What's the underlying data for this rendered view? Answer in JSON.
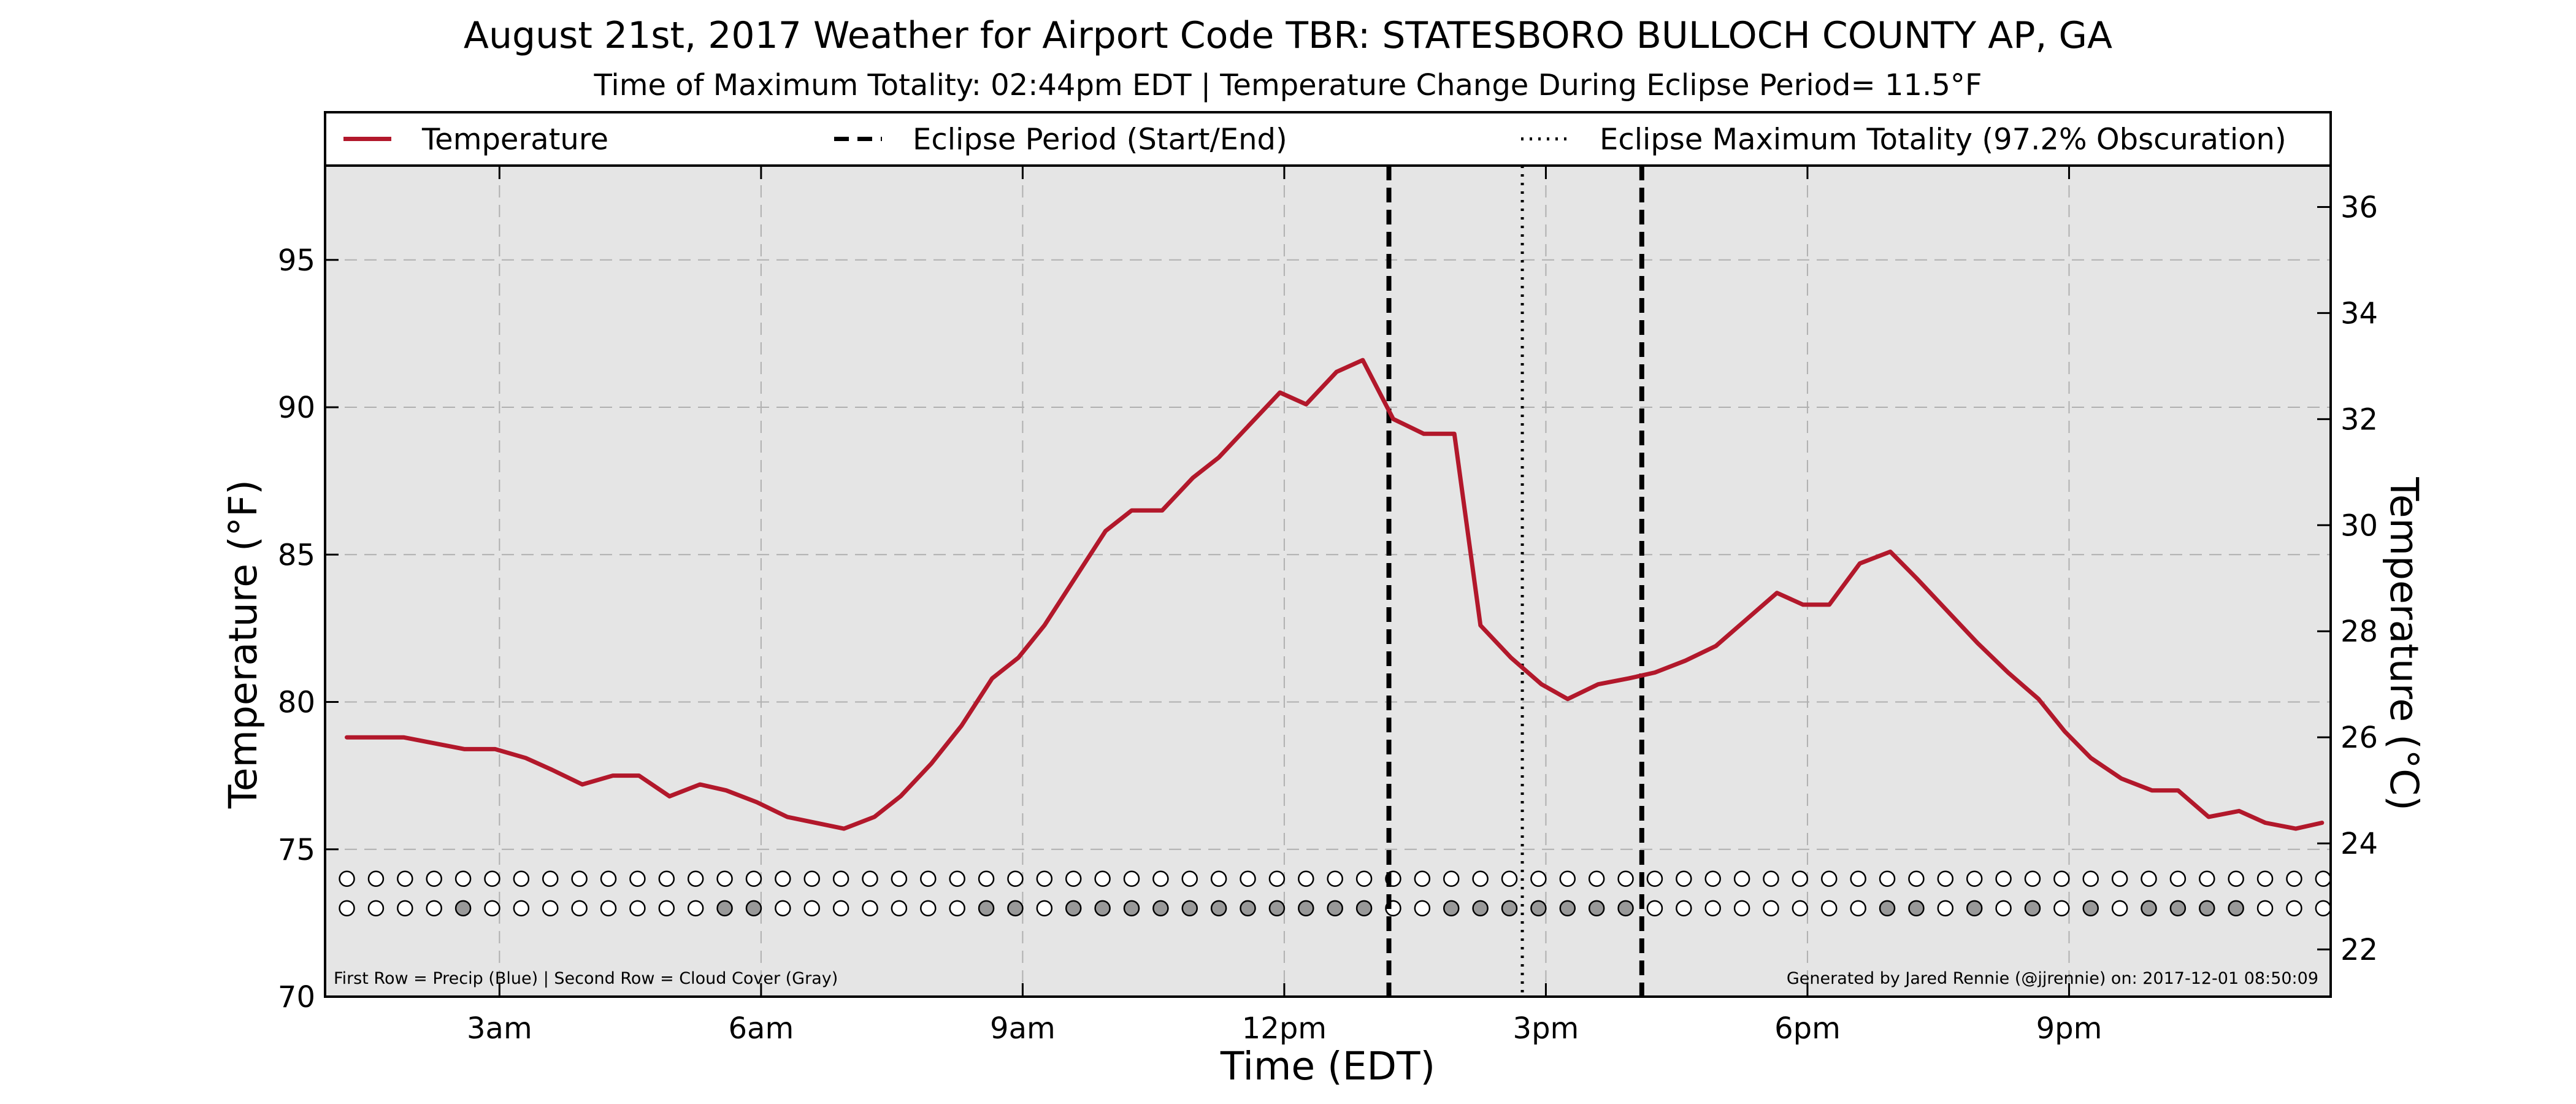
{
  "chart_data": {
    "type": "line",
    "title": "August 21st, 2017 Weather for Airport Code TBR: STATESBORO BULLOCH COUNTY AP, GA",
    "subtitle": "Time of Maximum Totality: 02:44pm EDT | Temperature Change During Eclipse Period= 11.5°F",
    "xlabel": "Time (EDT)",
    "ylabel": "Temperature (°F)",
    "ylabel_right": "Temperature (°C)",
    "xlim": [
      1.0,
      24.0
    ],
    "ylim": [
      70,
      98.2
    ],
    "ylim_right": [
      21.11,
      36.78
    ],
    "grid": true,
    "legend_position": "top, above plot",
    "x_ticks": [
      {
        "x": 3,
        "label": "3am"
      },
      {
        "x": 6,
        "label": "6am"
      },
      {
        "x": 9,
        "label": "9am"
      },
      {
        "x": 12,
        "label": "12pm"
      },
      {
        "x": 15,
        "label": "3pm"
      },
      {
        "x": 18,
        "label": "6pm"
      },
      {
        "x": 21,
        "label": "9pm"
      }
    ],
    "y_ticks": [
      70,
      75,
      80,
      85,
      90,
      95
    ],
    "y_ticks_right": [
      22,
      24,
      26,
      28,
      30,
      32,
      34,
      36
    ],
    "legend": [
      {
        "label": "Temperature",
        "style": "solid"
      },
      {
        "label": "Eclipse Period (Start/End)",
        "style": "dashed"
      },
      {
        "label": "Eclipse Maximum Totality (97.2% Obscuration)",
        "style": "dotted"
      }
    ],
    "series": [
      {
        "name": "Temperature",
        "color": "#b2182b",
        "points": [
          [
            1.25,
            78.8
          ],
          [
            1.9,
            78.8
          ],
          [
            2.6,
            78.4
          ],
          [
            2.95,
            78.4
          ],
          [
            3.3,
            78.1
          ],
          [
            3.6,
            77.7
          ],
          [
            3.95,
            77.2
          ],
          [
            4.3,
            77.5
          ],
          [
            4.6,
            77.5
          ],
          [
            4.95,
            76.8
          ],
          [
            5.3,
            77.2
          ],
          [
            5.6,
            77.0
          ],
          [
            5.95,
            76.6
          ],
          [
            6.3,
            76.1
          ],
          [
            6.95,
            75.7
          ],
          [
            7.3,
            76.1
          ],
          [
            7.6,
            76.8
          ],
          [
            7.95,
            77.9
          ],
          [
            8.3,
            79.2
          ],
          [
            8.65,
            80.8
          ],
          [
            8.95,
            81.5
          ],
          [
            9.25,
            82.6
          ],
          [
            9.6,
            84.2
          ],
          [
            9.95,
            85.8
          ],
          [
            10.25,
            86.5
          ],
          [
            10.6,
            86.5
          ],
          [
            10.95,
            87.6
          ],
          [
            11.25,
            88.3
          ],
          [
            11.6,
            89.4
          ],
          [
            11.95,
            90.5
          ],
          [
            12.25,
            90.1
          ],
          [
            12.6,
            91.2
          ],
          [
            12.9,
            91.6
          ],
          [
            13.25,
            89.6
          ],
          [
            13.6,
            89.1
          ],
          [
            13.95,
            89.1
          ],
          [
            14.25,
            82.6
          ],
          [
            14.6,
            81.5
          ],
          [
            14.95,
            80.6
          ],
          [
            15.25,
            80.1
          ],
          [
            15.6,
            80.6
          ],
          [
            15.95,
            80.8
          ],
          [
            16.25,
            81.0
          ],
          [
            16.6,
            81.4
          ],
          [
            16.95,
            81.9
          ],
          [
            17.3,
            82.8
          ],
          [
            17.65,
            83.7
          ],
          [
            17.95,
            83.3
          ],
          [
            18.25,
            83.3
          ],
          [
            18.6,
            84.7
          ],
          [
            18.95,
            85.1
          ],
          [
            19.25,
            84.2
          ],
          [
            19.6,
            83.1
          ],
          [
            19.95,
            82.0
          ],
          [
            20.3,
            81.0
          ],
          [
            20.65,
            80.1
          ],
          [
            20.95,
            79.0
          ],
          [
            21.25,
            78.1
          ],
          [
            21.6,
            77.4
          ],
          [
            21.95,
            77.0
          ],
          [
            22.25,
            77.0
          ],
          [
            22.6,
            76.1
          ],
          [
            22.95,
            76.3
          ],
          [
            23.25,
            75.9
          ],
          [
            23.6,
            75.7
          ],
          [
            23.9,
            75.9
          ]
        ]
      }
    ],
    "eclipse": {
      "start_x": 13.2,
      "end_x": 16.1,
      "max_totality_x": 14.73,
      "obscuration_percent": 97.2
    },
    "markers": {
      "precip_row_y": 74.0,
      "cloud_row_y": 73.0,
      "x_start": 1.25,
      "x_step": 0.3333,
      "count": 69,
      "empty_color": "#ffffff",
      "filled_cloud_color": "#999999",
      "cloud_filled_indices": [
        4,
        13,
        14,
        22,
        23,
        25,
        26,
        27,
        28,
        29,
        30,
        31,
        32,
        33,
        34,
        35,
        38,
        39,
        40,
        41,
        42,
        43,
        44,
        53,
        54,
        56,
        58,
        60,
        62,
        63,
        64,
        65
      ]
    },
    "footnote_left": "First Row = Precip (Blue) | Second Row = Cloud Cover (Gray)",
    "footnote_right": "Generated by Jared Rennie (@jjrennie) on: 2017-12-01 08:50:09"
  },
  "colors": {
    "plot_background": "#e5e5e5",
    "grid": "#b0b0b0",
    "temperature_line": "#b2182b"
  }
}
